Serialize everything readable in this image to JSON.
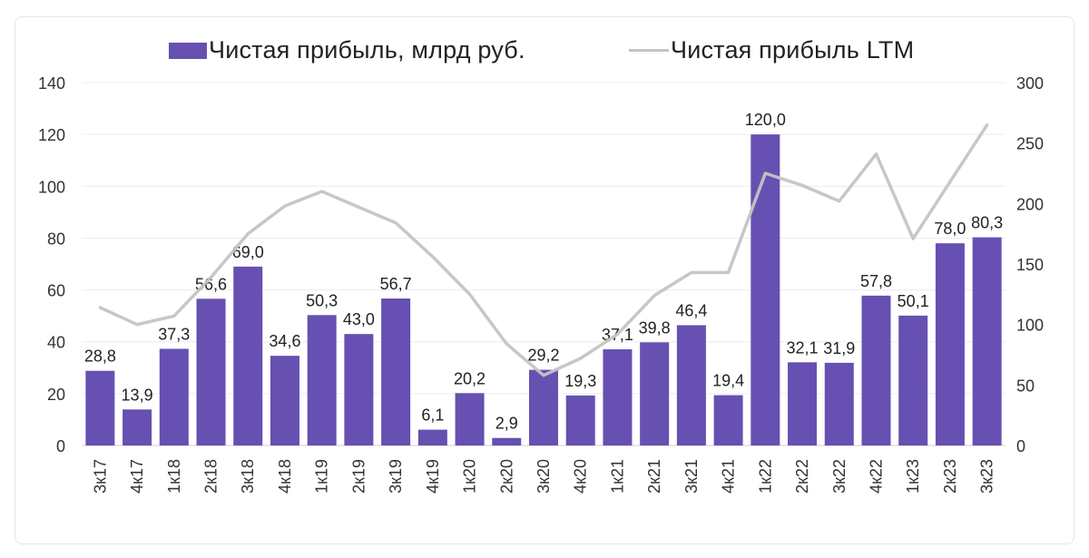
{
  "chart_data": {
    "type": "bar",
    "categories": [
      "3к17",
      "4к17",
      "1к18",
      "2к18",
      "3к18",
      "4к18",
      "1к19",
      "2к19",
      "3к19",
      "4к19",
      "1к20",
      "2к20",
      "3к20",
      "4к20",
      "1к21",
      "2к21",
      "3к21",
      "4к21",
      "1к22",
      "2к22",
      "3к22",
      "4к22",
      "1к23",
      "2к23",
      "3к23"
    ],
    "series": [
      {
        "name": "Чистая прибыль, млрд руб.",
        "type": "bar",
        "axis": "left",
        "color": "#6650b2",
        "values": [
          28.8,
          13.9,
          37.3,
          56.6,
          69.0,
          34.6,
          50.3,
          43.0,
          56.7,
          6.1,
          20.2,
          2.9,
          29.2,
          19.3,
          37.1,
          39.8,
          46.4,
          19.4,
          120.0,
          32.1,
          31.9,
          57.8,
          50.1,
          78.0,
          80.3
        ],
        "labels": [
          "28,8",
          "13,9",
          "37,3",
          "56,6",
          "69,0",
          "34,6",
          "50,3",
          "43,0",
          "56,7",
          "6,1",
          "20,2",
          "2,9",
          "29,2",
          "19,3",
          "37,1",
          "39,8",
          "46,4",
          "19,4",
          "120,0",
          "32,1",
          "31,9",
          "57,8",
          "50,1",
          "78,0",
          "80,3"
        ]
      },
      {
        "name": "Чистая прибыль LTM",
        "type": "line",
        "axis": "right",
        "color": "#c4c4c4",
        "values": [
          114,
          100,
          107,
          139,
          175,
          198,
          210,
          197,
          184,
          156,
          125,
          84,
          58,
          72,
          92,
          124,
          143,
          143,
          225,
          215,
          202,
          241,
          171,
          218,
          265
        ]
      }
    ],
    "ylim_left": [
      0,
      140
    ],
    "yticks_left": [
      "0",
      "20",
      "40",
      "60",
      "80",
      "100",
      "120",
      "140"
    ],
    "ylim_right": [
      0,
      300
    ],
    "yticks_right": [
      "0",
      "50",
      "100",
      "150",
      "200",
      "250",
      "300"
    ],
    "grid": true,
    "legend_position": "top-center"
  }
}
